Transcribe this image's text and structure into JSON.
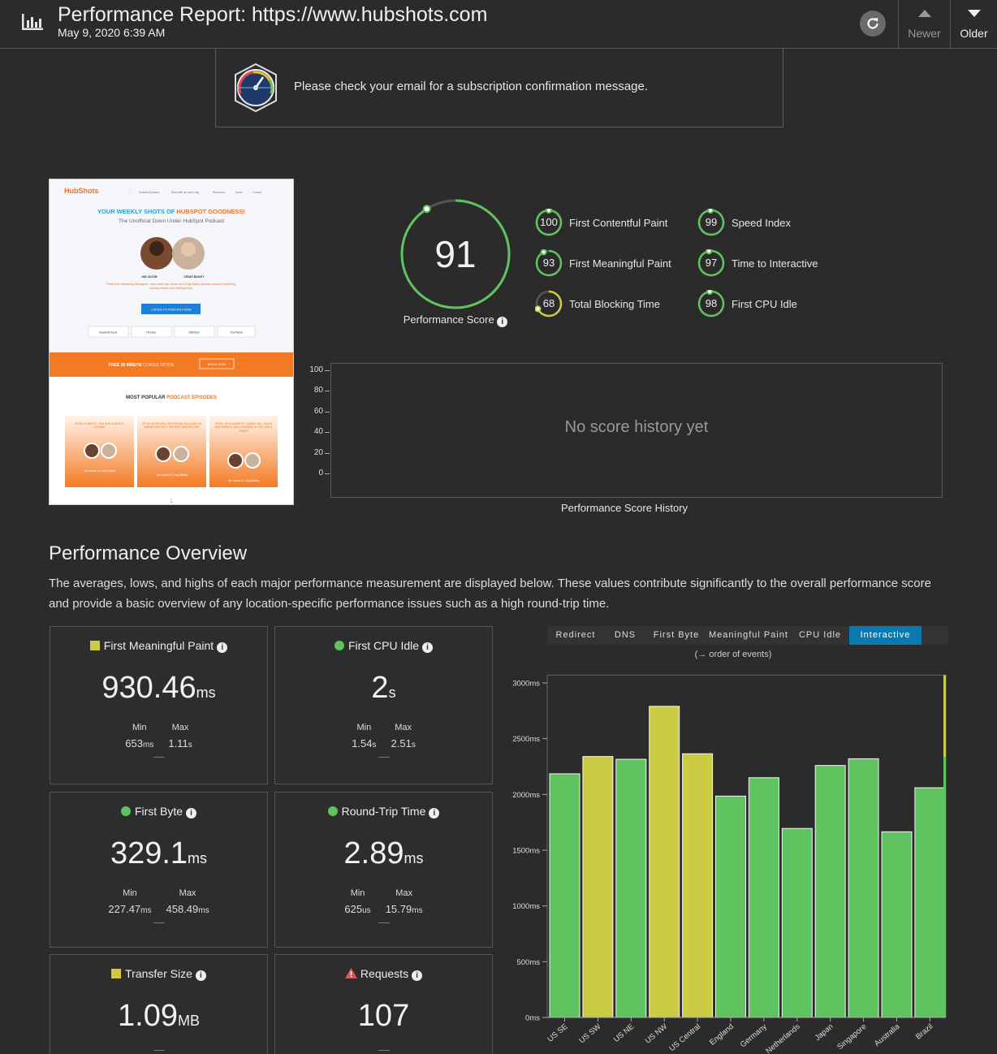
{
  "header": {
    "title": "Performance Report: https://www.hubshots.com",
    "date": "May 9, 2020 6:39 AM",
    "newer_label": "Newer",
    "older_label": "Older"
  },
  "notice": {
    "message": "Please check your email for a subscription confirmation message."
  },
  "thumbnail": {
    "brand": "HubShots",
    "nav": [
      "Podcast Episodes",
      "Work with Ian and Craig",
      "Resources",
      "About",
      "Contact"
    ],
    "headline_a": "YOUR WEEKLY SHOTS OF",
    "headline_b": "HUBSPOT GOODNESS!",
    "subhead": "The Unofficial Down Under HubSpot Podcast",
    "host1": "IAN JACOB",
    "host2": "CRAIG BAILEY",
    "blurb": "Perfect for Marketing Managers - each week Ian Jacob and Craig Bailey discuss inbound marketing, industry trends and HubSpot tips.",
    "cta": "LISTEN TO PODCAST NOW",
    "platforms": [
      "SoundCloud",
      "iTunes",
      "Stitcher",
      "YouTube"
    ],
    "banner_a": "FREE 30 MINUTE",
    "banner_b": "CONSULTATION",
    "banner_btn": "BOOK NOW",
    "popular_a": "MOST POPULAR",
    "popular_b": "PODCAST EPISODES",
    "episodes": [
      "EP105: HUBSPOT CMS HUB CONTENT STAGING",
      "EP100: INTERVIEW WITH BRIAN HALLIGAN ON MARKETING PAST, PRESENT AND FUTURE",
      "EP200: HOW HUBSPOT, MARKETING, SALES AND SERVICE HAS CHANGED IN THE LAST 4 YEARS"
    ],
    "episode_credit": "Ian Jacob & Craig Bailey"
  },
  "score": {
    "value": "91",
    "fraction": 0.91,
    "label": "Performance Score",
    "color": "#5fc35f"
  },
  "metrics": [
    {
      "value": "100",
      "fraction": 1.0,
      "name": "First Contentful Paint",
      "color": "#5fc35f"
    },
    {
      "value": "93",
      "fraction": 0.93,
      "name": "First Meaningful Paint",
      "color": "#5fc35f"
    },
    {
      "value": "68",
      "fraction": 0.68,
      "name": "Total Blocking Time",
      "color": "#cccc44"
    },
    {
      "value": "99",
      "fraction": 0.99,
      "name": "Speed Index",
      "color": "#5fc35f"
    },
    {
      "value": "97",
      "fraction": 0.97,
      "name": "Time to Interactive",
      "color": "#5fc35f"
    },
    {
      "value": "98",
      "fraction": 0.98,
      "name": "First CPU Idle",
      "color": "#5fc35f"
    }
  ],
  "history": {
    "empty_text": "No score history yet",
    "caption": "Performance Score History",
    "ticks": [
      "100",
      "80",
      "60",
      "40",
      "20",
      "0"
    ]
  },
  "overview": {
    "title": "Performance Overview",
    "description": "The averages, lows, and highs of each major performance measurement are displayed below. These values contribute significantly to the overall performance score and provide a basic overview of any location-specific performance issues such as a high round-trip time."
  },
  "cards": [
    {
      "name": "First Meaningful Paint",
      "marker": "square",
      "color": "#cccc44",
      "value": "930.46",
      "unit": "ms",
      "min_label": "Min",
      "min": "653",
      "min_unit": "ms",
      "max_label": "Max",
      "max": "1.11",
      "max_unit": "s"
    },
    {
      "name": "First CPU Idle",
      "marker": "dot",
      "color": "#5fc35f",
      "value": "2",
      "unit": "s",
      "min_label": "Min",
      "min": "1.54",
      "min_unit": "s",
      "max_label": "Max",
      "max": "2.51",
      "max_unit": "s"
    },
    {
      "name": "First Byte",
      "marker": "dot",
      "color": "#5fc35f",
      "value": "329.1",
      "unit": "ms",
      "min_label": "Min",
      "min": "227.47",
      "min_unit": "ms",
      "max_label": "Max",
      "max": "458.49",
      "max_unit": "ms"
    },
    {
      "name": "Round-Trip Time",
      "marker": "dot",
      "color": "#5fc35f",
      "value": "2.89",
      "unit": "ms",
      "min_label": "Min",
      "min": "625",
      "min_unit": "us",
      "max_label": "Max",
      "max": "15.79",
      "max_unit": "ms"
    },
    {
      "name": "Transfer Size",
      "marker": "square",
      "color": "#cccc44",
      "value": "1.09",
      "unit": "MB"
    },
    {
      "name": "Requests",
      "marker": "warning",
      "color": "#e05555",
      "value": "107",
      "unit": ""
    }
  ],
  "chart_tabs": [
    {
      "label": "Redirect",
      "active": false
    },
    {
      "label": "DNS",
      "active": false
    },
    {
      "label": "First Byte",
      "active": false
    },
    {
      "label": "Meaningful Paint",
      "active": false
    },
    {
      "label": "CPU Idle",
      "active": false
    },
    {
      "label": "Interactive",
      "active": true
    }
  ],
  "order_note": "(→ order of events)",
  "chart_data": {
    "type": "bar",
    "categories": [
      "US SE",
      "US SW",
      "US NE",
      "US NW",
      "US Central",
      "England",
      "Germany",
      "Netherlands",
      "Japan",
      "Singapore",
      "Australia",
      "Brazil"
    ],
    "values": [
      2185,
      2340,
      2315,
      2790,
      2365,
      1985,
      2150,
      1695,
      2260,
      2320,
      1665,
      2060
    ],
    "bar_colors": [
      "#5fc35f",
      "#cccc44",
      "#5fc35f",
      "#cccc44",
      "#cccc44",
      "#5fc35f",
      "#5fc35f",
      "#5fc35f",
      "#5fc35f",
      "#5fc35f",
      "#5fc35f",
      "#5fc35f"
    ],
    "ylim": [
      0,
      3070
    ],
    "yticks": [
      0,
      500,
      1000,
      1500,
      2000,
      2500,
      3000
    ],
    "ytick_labels": [
      "0ms",
      "500ms",
      "1000ms",
      "1500ms",
      "2000ms",
      "2500ms",
      "3000ms"
    ],
    "title": "",
    "xlabel": "",
    "ylabel": "",
    "legend_bar": {
      "green_value": 2335,
      "yellow_color": "#cccc44",
      "green_color": "#5fc35f"
    }
  }
}
